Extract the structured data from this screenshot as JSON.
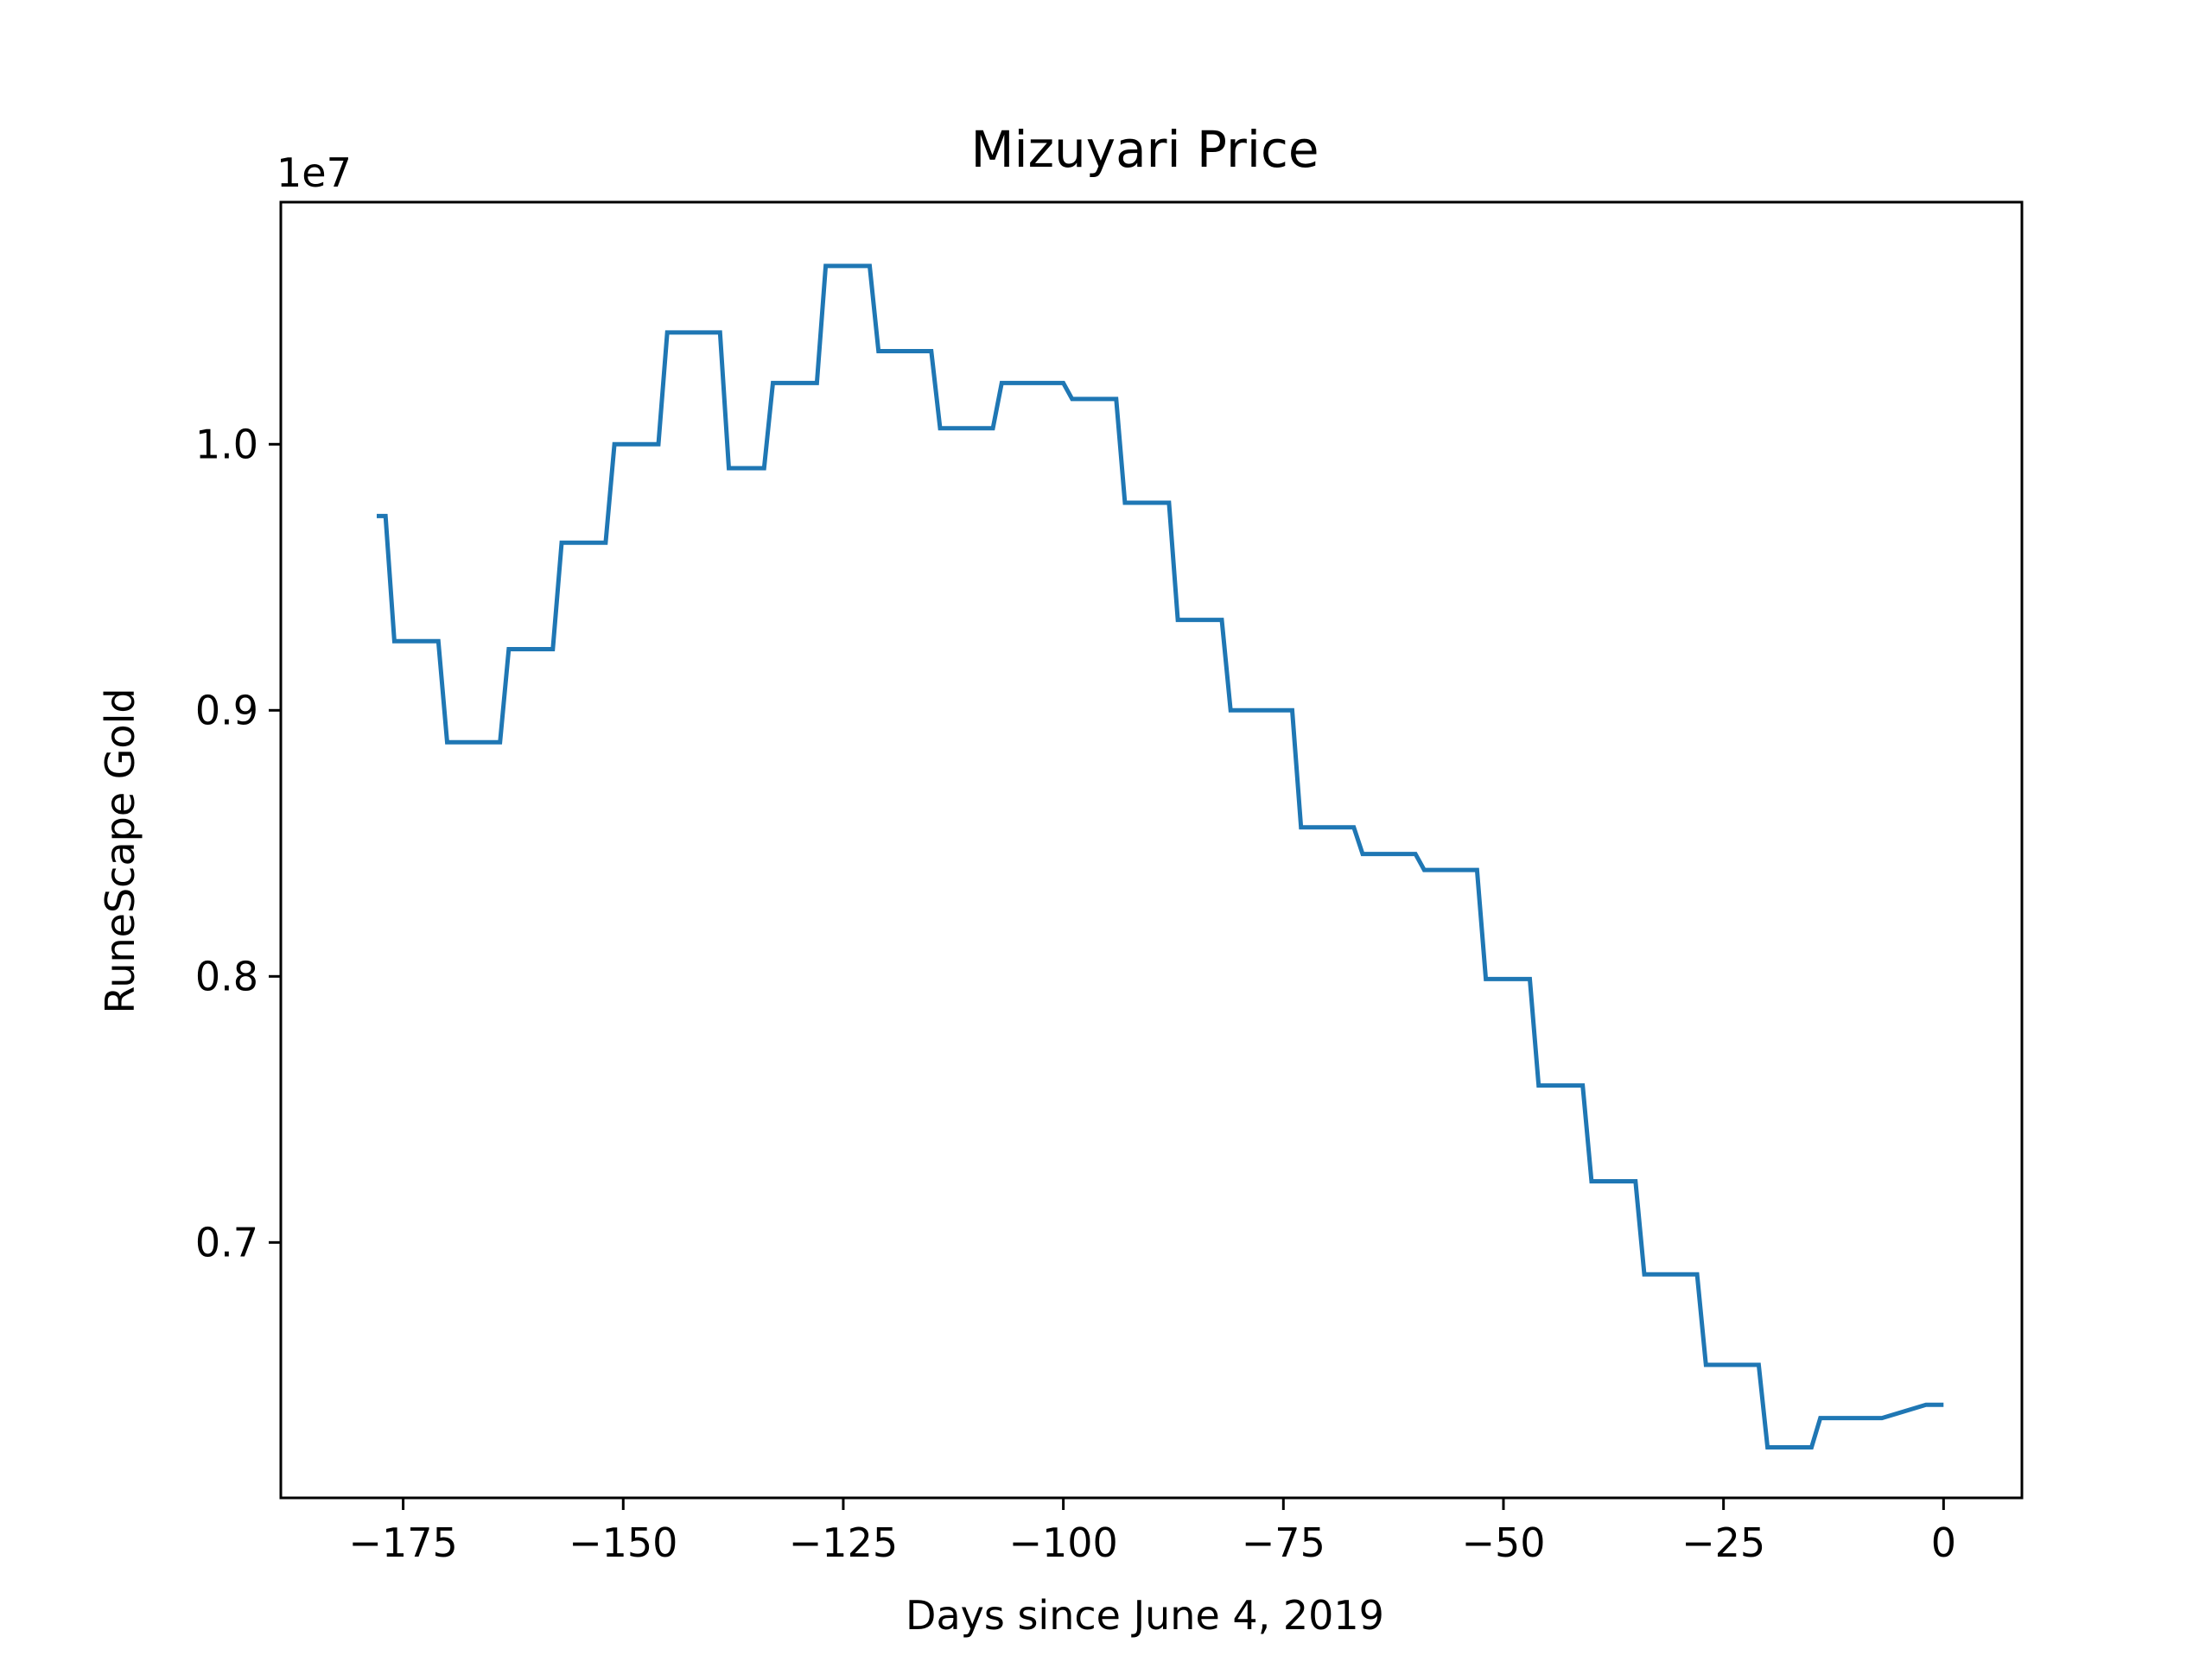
{
  "colors": {
    "line": "#1f77b4",
    "axes": "#000000",
    "background": "#ffffff"
  },
  "chart_data": {
    "type": "line",
    "title": "Mizuyari Price",
    "xlabel": "Days since June 4, 2019",
    "ylabel": "RuneScape Gold",
    "y_offset_label": "1e7",
    "xlim": [
      -188.9,
      8.9
    ],
    "ylim": [
      6.04,
      10.91
    ],
    "grid": false,
    "legend": "none",
    "x_ticks": [
      -175,
      -150,
      -125,
      -100,
      -75,
      -50,
      -25,
      0
    ],
    "x_tick_labels": [
      "−175",
      "−150",
      "−125",
      "−100",
      "−75",
      "−50",
      "−25",
      "0"
    ],
    "y_ticks": [
      7.0,
      8.0,
      9.0,
      10.0
    ],
    "y_tick_labels": [
      "0.7",
      "0.8",
      "0.9",
      "1.0"
    ],
    "series": [
      {
        "x": [
          -178,
          -177,
          -176,
          -171,
          -170,
          -164,
          -163,
          -158,
          -157,
          -152,
          -151,
          -146,
          -145,
          -139,
          -138,
          -134,
          -133,
          -128,
          -127,
          -122,
          -121,
          -115,
          -114,
          -108,
          -107,
          -100,
          -99,
          -94,
          -93,
          -88,
          -87,
          -82,
          -81,
          -74,
          -73,
          -67,
          -66,
          -60,
          -59,
          -53,
          -52,
          -47,
          -46,
          -41,
          -40,
          -35,
          -34,
          -28,
          -27,
          -21,
          -20,
          -15,
          -14,
          -8,
          -7,
          -2,
          -1,
          0
        ],
        "values": [
          9.73,
          9.73,
          9.26,
          9.26,
          8.88,
          8.88,
          9.23,
          9.23,
          9.63,
          9.63,
          10.0,
          10.0,
          10.42,
          10.42,
          9.91,
          9.91,
          10.23,
          10.23,
          10.67,
          10.67,
          10.35,
          10.35,
          10.06,
          10.06,
          10.23,
          10.23,
          10.17,
          10.17,
          9.78,
          9.78,
          9.34,
          9.34,
          9.0,
          9.0,
          8.56,
          8.56,
          8.46,
          8.46,
          8.4,
          8.4,
          7.99,
          7.99,
          7.59,
          7.59,
          7.23,
          7.23,
          6.88,
          6.88,
          6.54,
          6.54,
          6.23,
          6.23,
          6.34,
          6.34,
          6.34,
          6.39,
          6.39,
          6.39
        ]
      }
    ]
  }
}
